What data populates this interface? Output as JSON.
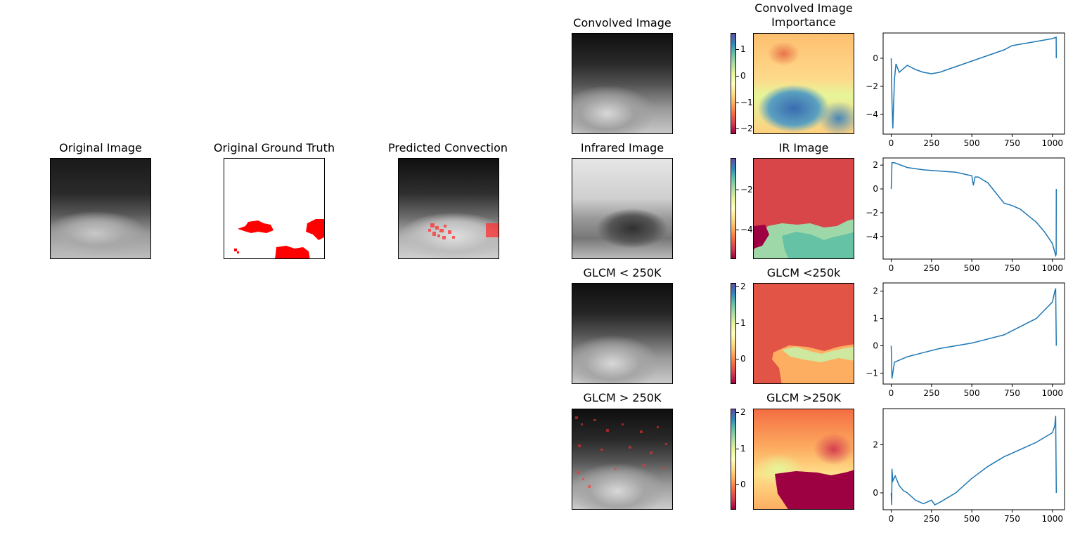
{
  "left_panels": {
    "original_image": {
      "title": "Original Image"
    },
    "ground_truth": {
      "title": "Original Ground Truth"
    },
    "predicted": {
      "title": "Predicted Convection"
    }
  },
  "rows": [
    {
      "image_title": "Convolved Image",
      "importance_title": "Convolved Image\nImportance",
      "colorbar_ticks": [
        "1",
        "0",
        "−1",
        "−2"
      ],
      "colorbar_tick_values": [
        1,
        0,
        -1,
        -2
      ],
      "colorbar_range": [
        -2.2,
        1.6
      ]
    },
    {
      "image_title": "Infrared Image",
      "importance_title": "IR Image",
      "colorbar_ticks": [
        "−2",
        "−4"
      ],
      "colorbar_tick_values": [
        -2,
        -4
      ],
      "colorbar_range": [
        -5.5,
        -0.4
      ]
    },
    {
      "image_title": "GLCM < 250K",
      "importance_title": "GLCM <250k",
      "colorbar_ticks": [
        "2",
        "1",
        "0"
      ],
      "colorbar_tick_values": [
        2,
        1,
        0
      ],
      "colorbar_range": [
        -0.7,
        2.1
      ]
    },
    {
      "image_title": "GLCM > 250K",
      "importance_title": "GLCM >250K",
      "colorbar_ticks": [
        "2",
        "1",
        "0"
      ],
      "colorbar_tick_values": [
        2,
        1,
        0
      ],
      "colorbar_range": [
        -0.7,
        2.1
      ]
    }
  ],
  "chart_data": [
    {
      "type": "line",
      "series": [
        {
          "x": [
            0,
            5,
            10,
            20,
            30,
            50,
            100,
            150,
            200,
            250,
            300,
            400,
            500,
            600,
            700,
            750,
            800,
            900,
            1000,
            1023,
            1024
          ],
          "values": [
            0,
            -3,
            -5.0,
            -1.5,
            -0.4,
            -1.0,
            -0.5,
            -0.8,
            -1.0,
            -1.1,
            -1.0,
            -0.6,
            -0.2,
            0.2,
            0.6,
            0.9,
            1.0,
            1.2,
            1.4,
            1.5,
            0
          ]
        }
      ],
      "xticks": [
        "0",
        "250",
        "500",
        "750",
        "1000"
      ],
      "yticks": [
        "0",
        "−2",
        "−4"
      ],
      "xlim": [
        -50,
        1075
      ],
      "ylim": [
        -5.4,
        1.8
      ],
      "color": "#1f77b4"
    },
    {
      "type": "line",
      "series": [
        {
          "x": [
            0,
            5,
            20,
            100,
            200,
            300,
            400,
            500,
            510,
            520,
            540,
            600,
            700,
            750,
            800,
            900,
            950,
            1000,
            1020,
            1023,
            1024
          ],
          "values": [
            0,
            2.2,
            2.2,
            1.8,
            1.6,
            1.5,
            1.4,
            1.1,
            0.3,
            1.0,
            1.0,
            0.5,
            -1.2,
            -1.4,
            -1.7,
            -2.8,
            -3.6,
            -4.6,
            -5.6,
            -5.5,
            0
          ]
        }
      ],
      "xticks": [
        "0",
        "250",
        "500",
        "750",
        "1000"
      ],
      "yticks": [
        "2",
        "0",
        "−2",
        "−4"
      ],
      "xlim": [
        -50,
        1075
      ],
      "ylim": [
        -5.9,
        2.6
      ],
      "color": "#1f77b4"
    },
    {
      "type": "line",
      "series": [
        {
          "x": [
            0,
            5,
            20,
            100,
            200,
            300,
            400,
            500,
            600,
            700,
            800,
            900,
            950,
            1000,
            1015,
            1020,
            1024
          ],
          "values": [
            0,
            -1.2,
            -0.6,
            -0.4,
            -0.25,
            -0.1,
            0.0,
            0.1,
            0.25,
            0.4,
            0.7,
            1.0,
            1.3,
            1.6,
            2.0,
            2.1,
            0
          ]
        }
      ],
      "xticks": [
        "0",
        "250",
        "500",
        "750",
        "1000"
      ],
      "yticks": [
        "2",
        "1",
        "0",
        "−1"
      ],
      "xlim": [
        -50,
        1075
      ],
      "ylim": [
        -1.4,
        2.3
      ],
      "color": "#1f77b4"
    },
    {
      "type": "line",
      "series": [
        {
          "x": [
            0,
            3,
            5,
            10,
            25,
            50,
            75,
            100,
            150,
            200,
            250,
            270,
            300,
            400,
            500,
            600,
            700,
            800,
            900,
            950,
            1000,
            1015,
            1020,
            1024
          ],
          "values": [
            0,
            -0.5,
            1.0,
            0.5,
            0.7,
            0.3,
            0.1,
            0.0,
            -0.3,
            -0.45,
            -0.3,
            -0.5,
            -0.4,
            0.0,
            0.6,
            1.1,
            1.5,
            1.8,
            2.1,
            2.3,
            2.5,
            2.8,
            3.2,
            0
          ]
        }
      ],
      "xticks": [
        "0",
        "250",
        "500",
        "750",
        "1000"
      ],
      "yticks": [
        "2",
        "0"
      ],
      "xlim": [
        -50,
        1075
      ],
      "ylim": [
        -0.7,
        3.5
      ],
      "color": "#1f77b4"
    }
  ]
}
